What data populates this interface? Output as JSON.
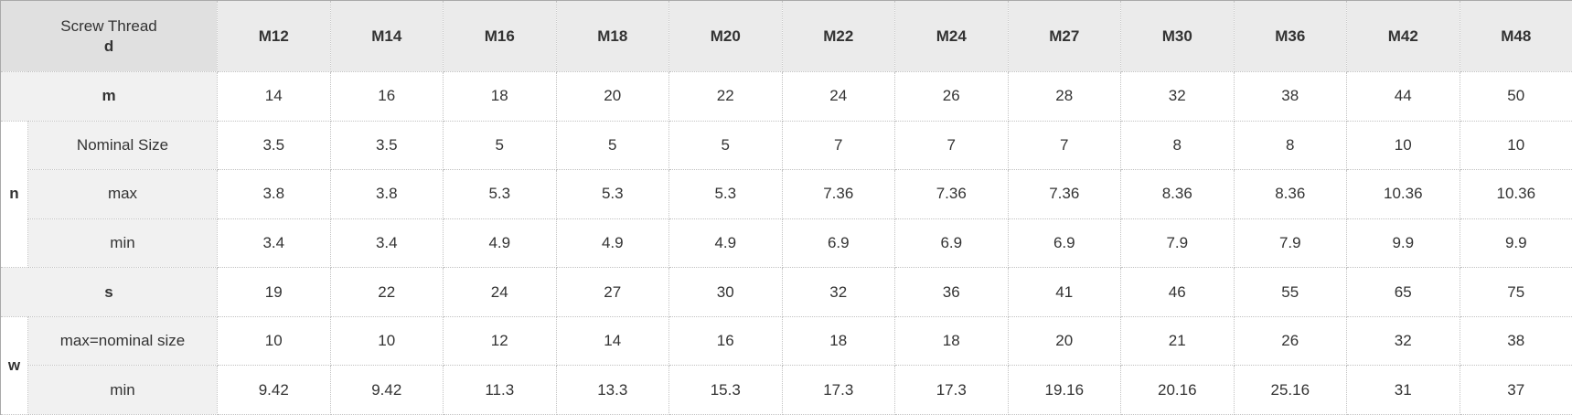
{
  "colors": {
    "header_blue": "#0e6fbd",
    "corner_bg": "#e0e0e0",
    "col_header_bg": "#ebebeb",
    "label_bg": "#f1f1f1",
    "text": "#333333"
  },
  "table": {
    "corner": {
      "line1": "Screw Thread",
      "line2": "d"
    },
    "columns": [
      "M12",
      "M14",
      "M16",
      "M18",
      "M20",
      "M22",
      "M24",
      "M27",
      "M30",
      "M36",
      "M42",
      "M48"
    ],
    "row_groups": [
      {
        "group": null,
        "rows": [
          {
            "label": "m",
            "label_bold": true,
            "values": [
              "14",
              "16",
              "18",
              "20",
              "22",
              "24",
              "26",
              "28",
              "32",
              "38",
              "44",
              "50"
            ]
          }
        ]
      },
      {
        "group": "n",
        "rows": [
          {
            "label": "Nominal Size",
            "label_bold": false,
            "values": [
              "3.5",
              "3.5",
              "5",
              "5",
              "5",
              "7",
              "7",
              "7",
              "8",
              "8",
              "10",
              "10"
            ]
          },
          {
            "label": "max",
            "label_bold": false,
            "values": [
              "3.8",
              "3.8",
              "5.3",
              "5.3",
              "5.3",
              "7.36",
              "7.36",
              "7.36",
              "8.36",
              "8.36",
              "10.36",
              "10.36"
            ]
          },
          {
            "label": "min",
            "label_bold": false,
            "values": [
              "3.4",
              "3.4",
              "4.9",
              "4.9",
              "4.9",
              "6.9",
              "6.9",
              "6.9",
              "7.9",
              "7.9",
              "9.9",
              "9.9"
            ]
          }
        ]
      },
      {
        "group": null,
        "rows": [
          {
            "label": "s",
            "label_bold": true,
            "values": [
              "19",
              "22",
              "24",
              "27",
              "30",
              "32",
              "36",
              "41",
              "46",
              "55",
              "65",
              "75"
            ]
          }
        ]
      },
      {
        "group": "w",
        "rows": [
          {
            "label": "max=nominal size",
            "label_bold": false,
            "values": [
              "10",
              "10",
              "12",
              "14",
              "16",
              "18",
              "18",
              "20",
              "21",
              "26",
              "32",
              "38"
            ]
          },
          {
            "label": "min",
            "label_bold": false,
            "values": [
              "9.42",
              "9.42",
              "11.3",
              "13.3",
              "15.3",
              "17.3",
              "17.3",
              "19.16",
              "20.16",
              "25.16",
              "31",
              "37"
            ]
          }
        ]
      }
    ]
  }
}
